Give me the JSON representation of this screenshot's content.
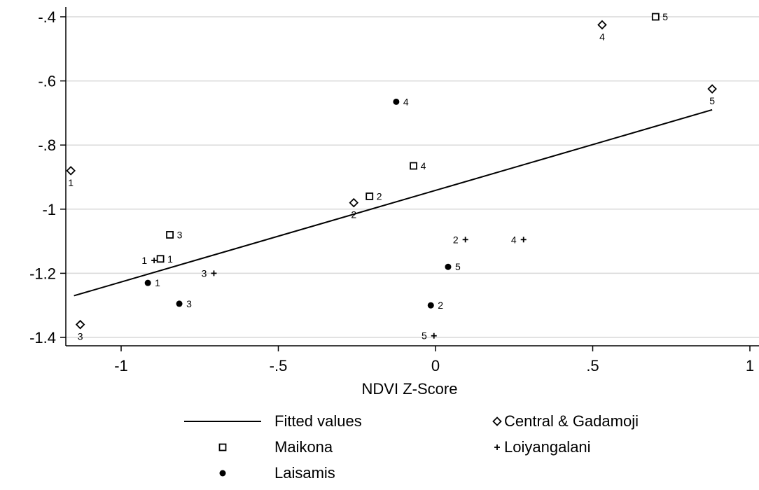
{
  "chart_data": {
    "type": "scatter",
    "xlabel": "NDVI Z-Score",
    "ylabel": "",
    "xlim": [
      -1.17,
      1.03
    ],
    "ylim": [
      -1.42,
      -0.385
    ],
    "xticks": [
      -1,
      -0.5,
      0,
      0.5,
      1
    ],
    "xtick_labels": [
      "-1",
      "-.5",
      "0",
      ".5",
      "1"
    ],
    "yticks": [
      -0.4,
      -0.6,
      -0.8,
      -1.0,
      -1.2,
      -1.4
    ],
    "ytick_labels": [
      "-.4",
      "-.6",
      "-.8",
      "-1",
      "-1.2",
      "-1.4"
    ],
    "grid": "horizontal",
    "fitted": {
      "name": "Fitted values",
      "x": [
        -1.15,
        0.88
      ],
      "y": [
        -1.27,
        -0.69
      ]
    },
    "series": [
      {
        "name": "Central & Gadamoji",
        "marker": "diamond",
        "points": [
          {
            "x": -1.16,
            "y": -0.88,
            "label": "1",
            "pos": "below"
          },
          {
            "x": -0.26,
            "y": -0.98,
            "label": "2",
            "pos": "below"
          },
          {
            "x": -1.13,
            "y": -1.36,
            "label": "3",
            "pos": "below"
          },
          {
            "x": 0.53,
            "y": -0.425,
            "label": "4",
            "pos": "below"
          },
          {
            "x": 0.88,
            "y": -0.625,
            "label": "5",
            "pos": "below"
          }
        ]
      },
      {
        "name": "Maikona",
        "marker": "square",
        "points": [
          {
            "x": -0.875,
            "y": -1.155,
            "label": "1",
            "pos": "right"
          },
          {
            "x": -0.21,
            "y": -0.96,
            "label": "2",
            "pos": "right"
          },
          {
            "x": -0.845,
            "y": -1.08,
            "label": "3",
            "pos": "right"
          },
          {
            "x": -0.07,
            "y": -0.865,
            "label": "4",
            "pos": "right"
          },
          {
            "x": 0.7,
            "y": -0.4,
            "label": "5",
            "pos": "right"
          }
        ]
      },
      {
        "name": "Loiyangalani",
        "marker": "plus",
        "points": [
          {
            "x": -0.895,
            "y": -1.16,
            "label": "1",
            "pos": "left"
          },
          {
            "x": 0.095,
            "y": -1.095,
            "label": "2",
            "pos": "left"
          },
          {
            "x": -0.705,
            "y": -1.2,
            "label": "3",
            "pos": "left"
          },
          {
            "x": 0.28,
            "y": -1.095,
            "label": "4",
            "pos": "left"
          },
          {
            "x": -0.005,
            "y": -1.395,
            "label": "5",
            "pos": "left"
          }
        ]
      },
      {
        "name": "Laisamis",
        "marker": "dot",
        "points": [
          {
            "x": -0.915,
            "y": -1.23,
            "label": "1",
            "pos": "right"
          },
          {
            "x": -0.015,
            "y": -1.3,
            "label": "2",
            "pos": "right"
          },
          {
            "x": -0.815,
            "y": -1.295,
            "label": "3",
            "pos": "right"
          },
          {
            "x": -0.125,
            "y": -0.665,
            "label": "4",
            "pos": "right"
          },
          {
            "x": 0.04,
            "y": -1.18,
            "label": "5",
            "pos": "right"
          }
        ]
      }
    ],
    "legend": [
      {
        "label": "Fitted values",
        "marker": "line"
      },
      {
        "label": "Central & Gadamoji",
        "marker": "diamond"
      },
      {
        "label": "Maikona",
        "marker": "square"
      },
      {
        "label": "Loiyangalani",
        "marker": "plus"
      },
      {
        "label": "Laisamis",
        "marker": "dot"
      }
    ],
    "legend_position": "bottom"
  }
}
